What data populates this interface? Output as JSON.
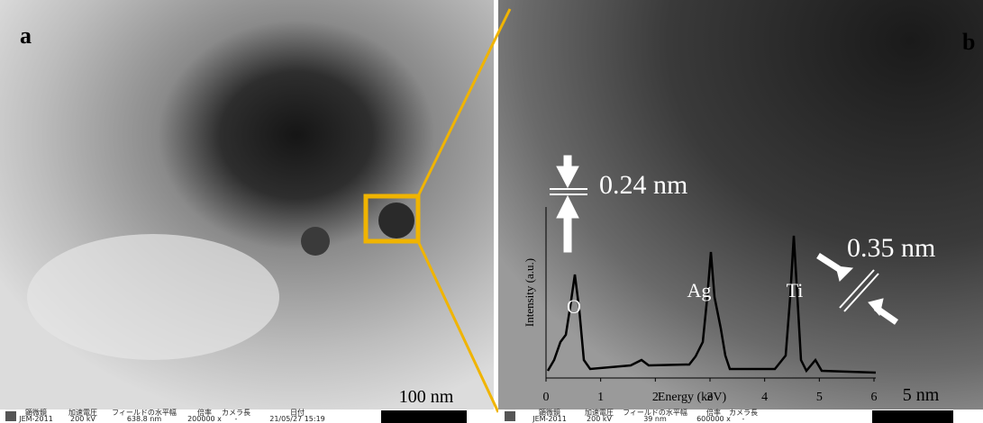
{
  "panels": [
    {
      "label": "a",
      "scale_bar": "100 nm",
      "info_bar": [
        "顕微鏡",
        "加速電圧",
        "フィールドの水平幅",
        "倍率",
        "カメラ長",
        "日付",
        "JEM-2011",
        "200 kV",
        "638.8 nm",
        "200000 x",
        "-",
        "21/05/27 15:19"
      ]
    },
    {
      "label": "b",
      "scale_bar": "5 nm",
      "info_bar": [
        "顕微鏡",
        "加速電圧",
        "フィールドの水平幅",
        "倍率",
        "カメラ長",
        "JEM-2011",
        "200 kV",
        "39 nm",
        "600000 x",
        "-"
      ]
    }
  ],
  "lattice": [
    "0.24 nm",
    "0.35 nm"
  ],
  "spectrum": {
    "y_label": "Intensity (a.u.)",
    "x_label": "Energy (keV)",
    "xticks": [
      0,
      1,
      2,
      3,
      4,
      5,
      6
    ],
    "peaks": [
      "O",
      "Ag",
      "Ti"
    ]
  }
}
